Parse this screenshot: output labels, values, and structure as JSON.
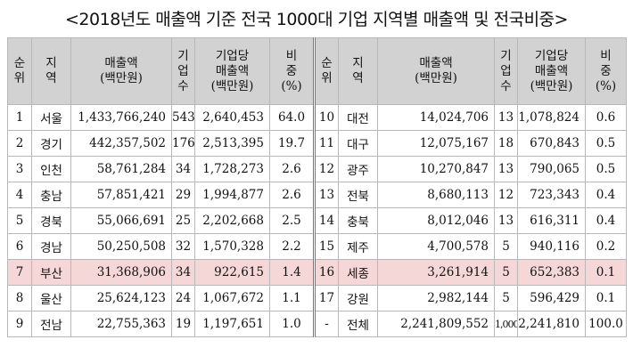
{
  "title": "<2018년도 매출액 기준 전국 1000대 기업 지역별 매출액 및 전국비중>",
  "headers": {
    "rank": "순\n위",
    "region": "지\n역",
    "sales": "매출액\n(백만원)",
    "firms": "기\n업\n수",
    "per_firm": "기업당\n매출액\n(백만원)",
    "share": "비\n중\n(%)"
  },
  "left_rows": [
    {
      "rank": "1",
      "region": "서울",
      "sales": "1,433,766,240",
      "firms": "543",
      "per_firm": "2,640,453",
      "share": "64.0"
    },
    {
      "rank": "2",
      "region": "경기",
      "sales": "442,357,502",
      "firms": "176",
      "per_firm": "2,513,395",
      "share": "19.7"
    },
    {
      "rank": "3",
      "region": "인천",
      "sales": "58,761,284",
      "firms": "34",
      "per_firm": "1,728,273",
      "share": "2.6"
    },
    {
      "rank": "4",
      "region": "충남",
      "sales": "57,851,421",
      "firms": "29",
      "per_firm": "1,994,877",
      "share": "2.6"
    },
    {
      "rank": "5",
      "region": "경북",
      "sales": "55,066,691",
      "firms": "25",
      "per_firm": "2,202,668",
      "share": "2.5"
    },
    {
      "rank": "6",
      "region": "경남",
      "sales": "50,250,508",
      "firms": "32",
      "per_firm": "1,570,328",
      "share": "2.2"
    },
    {
      "rank": "7",
      "region": "부산",
      "sales": "31,368,906",
      "firms": "34",
      "per_firm": "922,615",
      "share": "1.4"
    },
    {
      "rank": "8",
      "region": "울산",
      "sales": "25,624,123",
      "firms": "24",
      "per_firm": "1,067,672",
      "share": "1.1"
    },
    {
      "rank": "9",
      "region": "전남",
      "sales": "22,755,363",
      "firms": "19",
      "per_firm": "1,197,651",
      "share": "1.0"
    }
  ],
  "right_rows": [
    {
      "rank": "10",
      "region": "대전",
      "sales": "14,024,706",
      "firms": "13",
      "per_firm": "1,078,824",
      "share": "0.6"
    },
    {
      "rank": "11",
      "region": "대구",
      "sales": "12,075,167",
      "firms": "18",
      "per_firm": "670,843",
      "share": "0.5"
    },
    {
      "rank": "12",
      "region": "광주",
      "sales": "10,270,847",
      "firms": "13",
      "per_firm": "790,065",
      "share": "0.5"
    },
    {
      "rank": "13",
      "region": "전북",
      "sales": "8,680,113",
      "firms": "12",
      "per_firm": "723,343",
      "share": "0.4"
    },
    {
      "rank": "14",
      "region": "충북",
      "sales": "8,012,046",
      "firms": "13",
      "per_firm": "616,311",
      "share": "0.4"
    },
    {
      "rank": "15",
      "region": "제주",
      "sales": "4,700,578",
      "firms": "5",
      "per_firm": "940,116",
      "share": "0.2"
    },
    {
      "rank": "16",
      "region": "세종",
      "sales": "3,261,914",
      "firms": "5",
      "per_firm": "652,383",
      "share": "0.1"
    },
    {
      "rank": "17",
      "region": "강원",
      "sales": "2,982,144",
      "firms": "5",
      "per_firm": "596,429",
      "share": "0.1"
    },
    {
      "rank": "-",
      "region": "전체",
      "sales": "2,241,809,552",
      "firms": "1,000",
      "per_firm": "2,241,810",
      "share": "100.0"
    }
  ],
  "highlight_row_index": 6,
  "colors": {
    "header_bg": "#d2d2d2",
    "highlight_bg": "#f5d7d7",
    "border": "#b8b8b8"
  }
}
